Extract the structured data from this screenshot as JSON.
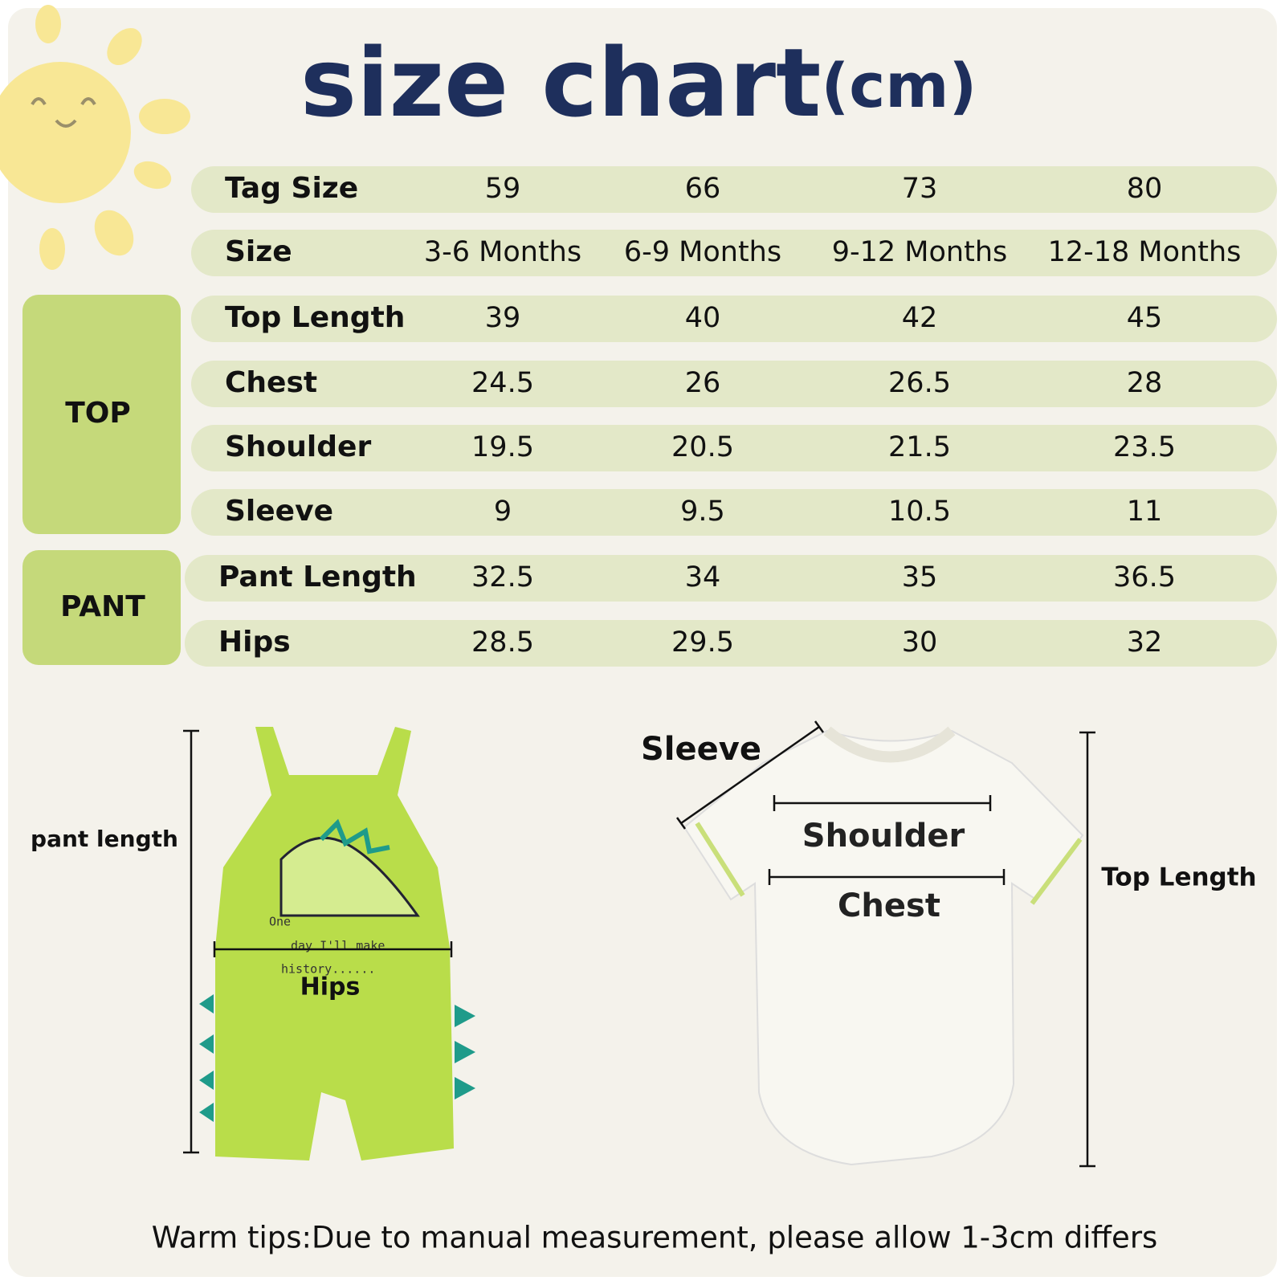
{
  "header": {
    "title": "size chart",
    "unit": "(cm)"
  },
  "table": {
    "rows": [
      [
        "Tag Size",
        "59",
        "66",
        "73",
        "80"
      ],
      [
        "Size",
        "3-6 Months",
        "6-9 Months",
        "9-12 Months",
        "12-18 Months"
      ],
      [
        "Top Length",
        "39",
        "40",
        "42",
        "45"
      ],
      [
        "Chest",
        "24.5",
        "26",
        "26.5",
        "28"
      ],
      [
        "Shoulder",
        "19.5",
        "20.5",
        "21.5",
        "23.5"
      ],
      [
        "Sleeve",
        "9",
        "9.5",
        "10.5",
        "11"
      ],
      [
        "Pant Length",
        "32.5",
        "34",
        "35",
        "36.5"
      ],
      [
        "Hips",
        "28.5",
        "29.5",
        "30",
        "32"
      ]
    ]
  },
  "groups": [
    "TOP",
    "PANT"
  ],
  "diagram": {
    "pant": {
      "length_label": "pant length",
      "hips_label": "Hips",
      "print_text": [
        "One",
        "day I'll make",
        "history......"
      ]
    },
    "top": {
      "sleeve": "Sleeve",
      "shoulder": "Shoulder",
      "chest": "Chest",
      "length": "Top Length"
    }
  },
  "footer": "Warm tips:Due to manual measurement, please allow 1-3cm differs"
}
